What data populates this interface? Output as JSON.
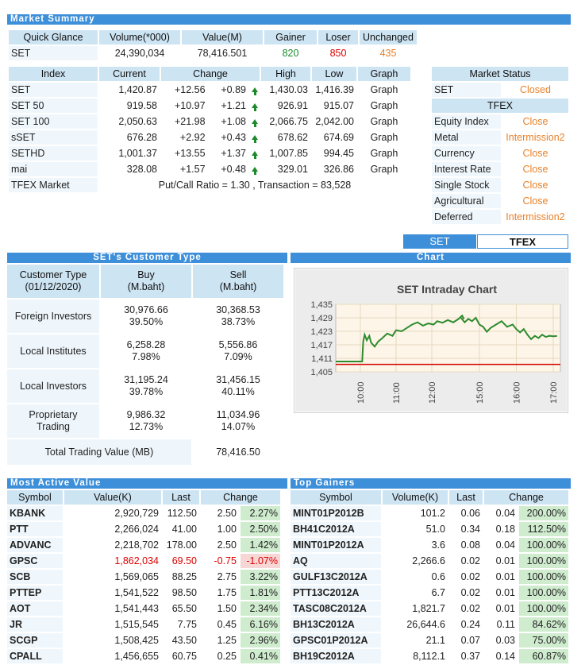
{
  "market_summary": {
    "title": "Market Summary",
    "headers": [
      "Quick Glance",
      "Volume(*000)",
      "Value(M)",
      "Gainer",
      "Loser",
      "Unchanged"
    ],
    "row": {
      "name": "SET",
      "volume": "24,390,034",
      "value": "78,416.501",
      "gainer": "820",
      "loser": "850",
      "unchanged": "435"
    }
  },
  "index_table": {
    "headers": [
      "Index",
      "Current",
      "Change",
      "High",
      "Low",
      "Graph"
    ],
    "rows": [
      {
        "name": "SET",
        "current": "1,420.87",
        "chg": "+12.56",
        "pct": "+0.89",
        "high": "1,430.03",
        "low": "1,416.39",
        "graph": "Graph"
      },
      {
        "name": "SET 50",
        "current": "919.58",
        "chg": "+10.97",
        "pct": "+1.21",
        "high": "926.91",
        "low": "915.07",
        "graph": "Graph"
      },
      {
        "name": "SET 100",
        "current": "2,050.63",
        "chg": "+21.98",
        "pct": "+1.08",
        "high": "2,066.75",
        "low": "2,042.00",
        "graph": "Graph"
      },
      {
        "name": "sSET",
        "current": "676.28",
        "chg": "+2.92",
        "pct": "+0.43",
        "high": "678.62",
        "low": "674.69",
        "graph": "Graph"
      },
      {
        "name": "SETHD",
        "current": "1,001.37",
        "chg": "+13.55",
        "pct": "+1.37",
        "high": "1,007.85",
        "low": "994.45",
        "graph": "Graph"
      },
      {
        "name": "mai",
        "current": "328.08",
        "chg": "+1.57",
        "pct": "+0.48",
        "high": "329.01",
        "low": "326.86",
        "graph": "Graph"
      }
    ],
    "tfex": {
      "name": "TFEX Market",
      "text": "Put/Call Ratio = 1.30 , Transaction = 83,528"
    }
  },
  "market_status": {
    "title": "Market Status",
    "set": {
      "name": "SET",
      "status": "Closed"
    },
    "tfex_title": "TFEX",
    "tfex_rows": [
      {
        "name": "Equity Index",
        "status": "Close"
      },
      {
        "name": "Metal",
        "status": "Intermission2"
      },
      {
        "name": "Currency",
        "status": "Close"
      },
      {
        "name": "Interest Rate",
        "status": "Close"
      },
      {
        "name": "Single Stock",
        "status": "Close"
      },
      {
        "name": "Agricultural",
        "status": "Close"
      },
      {
        "name": "Deferred",
        "status": "Intermission2"
      }
    ]
  },
  "tabs": {
    "set": "SET",
    "tfex": "TFEX"
  },
  "customer_type": {
    "title": "SET's Customer Type",
    "h1": "Customer Type\n(01/12/2020)",
    "h1a": "Customer Type",
    "h1b": "(01/12/2020)",
    "h2a": "Buy",
    "h2b": "(M.baht)",
    "h3a": "Sell",
    "h3b": "(M.baht)",
    "rows": [
      {
        "name": "Foreign Investors",
        "buy": "30,976.66",
        "buy_pct": "39.50%",
        "sell": "30,368.53",
        "sell_pct": "38.73%"
      },
      {
        "name": "Local Institutes",
        "buy": "6,258.28",
        "buy_pct": "7.98%",
        "sell": "5,556.86",
        "sell_pct": "7.09%"
      },
      {
        "name": "Local Investors",
        "buy": "31,195.24",
        "buy_pct": "39.78%",
        "sell": "31,456.15",
        "sell_pct": "40.11%"
      },
      {
        "name_a": "Proprietary",
        "name_b": "Trading",
        "buy": "9,986.32",
        "buy_pct": "12.73%",
        "sell": "11,034.96",
        "sell_pct": "14.07%"
      }
    ],
    "total_label": "Total Trading Value (MB)",
    "total_value": "78,416.50"
  },
  "chart_section": {
    "title": "Chart"
  },
  "chart_data": {
    "type": "line",
    "title": "SET Intraday Chart",
    "xlabel": "",
    "ylabel": "",
    "y_ticks": [
      "1,435",
      "1,429",
      "1,423",
      "1,417",
      "1,411",
      "1,405"
    ],
    "x_ticks": [
      "10:00",
      "11:00",
      "12:00",
      "15:00",
      "16:00",
      "17:00"
    ],
    "ylim": [
      1405,
      1435
    ],
    "previous_close": 1408.31,
    "series": [
      {
        "values": [
          [
            10.0,
            1409.6
          ],
          [
            10.05,
            1409.6
          ],
          [
            10.08,
            1418.5
          ],
          [
            10.12,
            1421.5
          ],
          [
            10.18,
            1419.0
          ],
          [
            10.25,
            1421.0
          ],
          [
            10.3,
            1418.0
          ],
          [
            10.4,
            1416.2
          ],
          [
            10.5,
            1418.5
          ],
          [
            10.6,
            1419.8
          ],
          [
            10.75,
            1422.0
          ],
          [
            10.9,
            1421.0
          ],
          [
            11.0,
            1423.5
          ],
          [
            11.15,
            1423.0
          ],
          [
            11.3,
            1424.5
          ],
          [
            11.45,
            1426.0
          ],
          [
            11.6,
            1427.0
          ],
          [
            11.75,
            1425.5
          ],
          [
            11.9,
            1426.5
          ],
          [
            12.05,
            1426.0
          ],
          [
            12.15,
            1427.5
          ],
          [
            12.3,
            1426.8
          ],
          [
            12.45,
            1428.0
          ],
          [
            12.6,
            1427.0
          ],
          [
            12.75,
            1428.5
          ],
          [
            12.85,
            1430.0
          ],
          [
            12.9,
            1428.5
          ],
          [
            14.5,
            1429.0
          ],
          [
            14.6,
            1427.0
          ],
          [
            14.7,
            1428.5
          ],
          [
            14.8,
            1427.5
          ],
          [
            14.9,
            1429.0
          ],
          [
            15.0,
            1426.0
          ],
          [
            15.1,
            1425.0
          ],
          [
            15.2,
            1422.8
          ],
          [
            15.3,
            1424.5
          ],
          [
            15.45,
            1426.0
          ],
          [
            15.6,
            1427.5
          ],
          [
            15.75,
            1425.0
          ],
          [
            15.9,
            1426.0
          ],
          [
            16.0,
            1424.0
          ],
          [
            16.1,
            1422.5
          ],
          [
            16.2,
            1424.0
          ],
          [
            16.3,
            1421.5
          ],
          [
            16.4,
            1419.5
          ],
          [
            16.5,
            1421.0
          ],
          [
            16.6,
            1420.0
          ],
          [
            16.7,
            1421.5
          ],
          [
            16.8,
            1420.5
          ],
          [
            16.9,
            1421.0
          ],
          [
            17.0,
            1420.8
          ],
          [
            17.1,
            1420.9
          ]
        ]
      }
    ]
  },
  "most_active": {
    "title": "Most Active Value",
    "headers": [
      "Symbol",
      "Value(K)",
      "Last",
      "Change"
    ],
    "rows": [
      {
        "sym": "KBANK",
        "value": "2,920,729",
        "last": "112.50",
        "chg": "2.50",
        "pct": "2.27%",
        "dir": "pos"
      },
      {
        "sym": "PTT",
        "value": "2,266,024",
        "last": "41.00",
        "chg": "1.00",
        "pct": "2.50%",
        "dir": "pos"
      },
      {
        "sym": "ADVANC",
        "value": "2,218,702",
        "last": "178.00",
        "chg": "2.50",
        "pct": "1.42%",
        "dir": "pos"
      },
      {
        "sym": "GPSC",
        "value": "1,862,034",
        "last": "69.50",
        "chg": "-0.75",
        "pct": "-1.07%",
        "dir": "neg"
      },
      {
        "sym": "SCB",
        "value": "1,569,065",
        "last": "88.25",
        "chg": "2.75",
        "pct": "3.22%",
        "dir": "pos"
      },
      {
        "sym": "PTTEP",
        "value": "1,541,522",
        "last": "98.50",
        "chg": "1.75",
        "pct": "1.81%",
        "dir": "pos"
      },
      {
        "sym": "AOT",
        "value": "1,541,443",
        "last": "65.50",
        "chg": "1.50",
        "pct": "2.34%",
        "dir": "pos"
      },
      {
        "sym": "JR",
        "value": "1,515,545",
        "last": "7.75",
        "chg": "0.45",
        "pct": "6.16%",
        "dir": "pos"
      },
      {
        "sym": "SCGP",
        "value": "1,508,425",
        "last": "43.50",
        "chg": "1.25",
        "pct": "2.96%",
        "dir": "pos"
      },
      {
        "sym": "CPALL",
        "value": "1,456,655",
        "last": "60.75",
        "chg": "0.25",
        "pct": "0.41%",
        "dir": "pos"
      }
    ]
  },
  "top_gainers": {
    "title": "Top Gainers",
    "headers": [
      "Symbol",
      "Volume(K)",
      "Last",
      "Change"
    ],
    "rows": [
      {
        "sym": "MINT01P2012B",
        "vol": "101.2",
        "last": "0.06",
        "chg": "0.04",
        "pct": "200.00%"
      },
      {
        "sym": "BH41C2012A",
        "vol": "51.0",
        "last": "0.34",
        "chg": "0.18",
        "pct": "112.50%"
      },
      {
        "sym": "MINT01P2012A",
        "vol": "3.6",
        "last": "0.08",
        "chg": "0.04",
        "pct": "100.00%"
      },
      {
        "sym": "AQ",
        "vol": "2,266.6",
        "last": "0.02",
        "chg": "0.01",
        "pct": "100.00%"
      },
      {
        "sym": "GULF13C2012A",
        "vol": "0.6",
        "last": "0.02",
        "chg": "0.01",
        "pct": "100.00%"
      },
      {
        "sym": "PTT13C2012A",
        "vol": "6.7",
        "last": "0.02",
        "chg": "0.01",
        "pct": "100.00%"
      },
      {
        "sym": "TASC08C2012A",
        "vol": "1,821.7",
        "last": "0.02",
        "chg": "0.01",
        "pct": "100.00%"
      },
      {
        "sym": "BH13C2012A",
        "vol": "26,644.6",
        "last": "0.24",
        "chg": "0.11",
        "pct": "84.62%"
      },
      {
        "sym": "GPSC01P2012A",
        "vol": "21.1",
        "last": "0.07",
        "chg": "0.03",
        "pct": "75.00%"
      },
      {
        "sym": "BH19C2012A",
        "vol": "8,112.1",
        "last": "0.37",
        "chg": "0.14",
        "pct": "60.87%"
      }
    ]
  },
  "colors": {
    "accent": "#3d8fd9",
    "header_bg": "#cde4f3",
    "gain": "#1a8a2a",
    "loss": "#dd0000",
    "status": "#e8812a"
  }
}
